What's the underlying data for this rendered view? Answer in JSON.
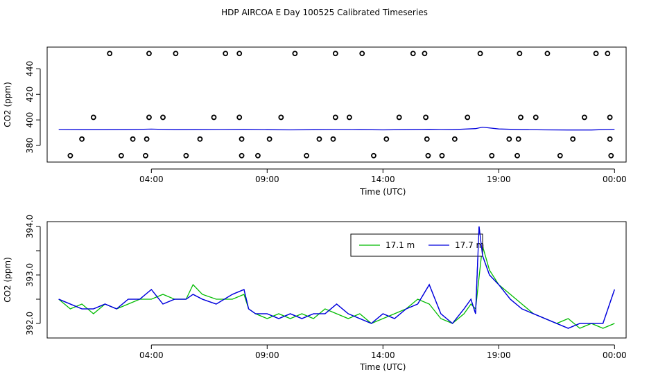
{
  "page_title": "HDP AIRCOA E  Day 100525  Calibrated Timeseries",
  "colors": {
    "series_17_1": "#00bb00",
    "series_17_7": "#0000dd",
    "axes": "#000000"
  },
  "chart_data": [
    {
      "type": "scatter",
      "title": "HDP AIRCOA E  Day 100525  Calibrated Timeseries",
      "xlabel": "Time (UTC)",
      "ylabel": "CO2 (ppm)",
      "x_unit": "hours since 00:00",
      "xlim": [
        -0.5,
        24.5
      ],
      "ylim": [
        367,
        457
      ],
      "x_ticks": [
        4,
        9,
        14,
        19,
        24
      ],
      "x_tick_labels": [
        "04:00",
        "09:00",
        "14:00",
        "19:00",
        "00:00"
      ],
      "y_ticks": [
        380,
        400,
        420,
        440
      ],
      "y_tick_labels": [
        "380",
        "400",
        "420",
        "440"
      ],
      "grid": false,
      "series": [
        {
          "name": "",
          "kind": "open-circle",
          "points": [
            [
              2.2,
              452
            ],
            [
              3.9,
              452
            ],
            [
              5.05,
              452
            ],
            [
              7.2,
              452
            ],
            [
              7.8,
              452
            ],
            [
              10.2,
              452
            ],
            [
              11.95,
              452
            ],
            [
              13.1,
              452
            ],
            [
              15.3,
              452
            ],
            [
              15.8,
              452
            ],
            [
              18.2,
              452
            ],
            [
              19.9,
              452
            ],
            [
              21.1,
              452
            ],
            [
              23.2,
              452
            ],
            [
              23.7,
              452
            ],
            [
              1.5,
              402
            ],
            [
              3.9,
              402
            ],
            [
              4.5,
              402
            ],
            [
              6.7,
              402
            ],
            [
              7.8,
              402
            ],
            [
              9.6,
              402
            ],
            [
              11.95,
              402
            ],
            [
              12.55,
              402
            ],
            [
              14.7,
              402
            ],
            [
              15.85,
              402
            ],
            [
              17.65,
              402
            ],
            [
              19.95,
              402
            ],
            [
              20.6,
              402
            ],
            [
              22.7,
              402
            ],
            [
              23.8,
              402
            ],
            [
              1.0,
              385
            ],
            [
              3.2,
              385
            ],
            [
              3.8,
              385
            ],
            [
              6.1,
              385
            ],
            [
              7.9,
              385
            ],
            [
              9.1,
              385
            ],
            [
              11.25,
              385
            ],
            [
              11.85,
              385
            ],
            [
              14.15,
              385
            ],
            [
              15.9,
              385
            ],
            [
              17.1,
              385
            ],
            [
              19.45,
              385
            ],
            [
              19.85,
              385
            ],
            [
              22.2,
              385
            ],
            [
              23.8,
              385
            ],
            [
              0.5,
              372
            ],
            [
              2.7,
              372
            ],
            [
              3.75,
              372
            ],
            [
              5.5,
              372
            ],
            [
              7.9,
              372
            ],
            [
              8.6,
              372
            ],
            [
              10.7,
              372
            ],
            [
              13.6,
              372
            ],
            [
              15.95,
              372
            ],
            [
              16.55,
              372
            ],
            [
              18.7,
              372
            ],
            [
              19.8,
              372
            ],
            [
              21.65,
              372
            ],
            [
              23.85,
              372
            ]
          ]
        },
        {
          "name": "",
          "kind": "line",
          "x": [
            0,
            1,
            2,
            3,
            4,
            5,
            6,
            7,
            8,
            9,
            10,
            11,
            12,
            13,
            14,
            15,
            16,
            17,
            18,
            18.3,
            19,
            20,
            21,
            22,
            23,
            24
          ],
          "y": [
            392.5,
            392.3,
            392.3,
            392.4,
            392.8,
            392.3,
            392.4,
            392.5,
            392.6,
            392.3,
            392.2,
            392.3,
            392.5,
            392.4,
            392.2,
            392.4,
            392.6,
            392.4,
            393.2,
            394.3,
            392.9,
            392.4,
            392.2,
            392.1,
            392.1,
            392.7
          ]
        }
      ]
    },
    {
      "type": "line",
      "title": "",
      "xlabel": "Time (UTC)",
      "ylabel": "CO2 (ppm)",
      "x_unit": "hours since 00:00",
      "xlim": [
        -0.5,
        24.5
      ],
      "ylim": [
        391.7,
        394.1
      ],
      "x_ticks": [
        4,
        9,
        14,
        19,
        24
      ],
      "x_tick_labels": [
        "04:00",
        "09:00",
        "14:00",
        "19:00",
        "00:00"
      ],
      "y_ticks": [
        392.0,
        392.5,
        393.0,
        393.5,
        394.0
      ],
      "y_tick_labels": [
        "392.0",
        "",
        "393.0",
        "",
        "394.0"
      ],
      "grid": false,
      "legend": {
        "position": "top-center",
        "entries": [
          "17.1 m",
          "17.7 m"
        ]
      },
      "series": [
        {
          "name": "17.1 m",
          "x": [
            0,
            0.5,
            1,
            1.5,
            2,
            2.5,
            3,
            3.5,
            4,
            4.5,
            5,
            5.5,
            5.8,
            6.2,
            6.8,
            7.5,
            8.0,
            8.2,
            8.5,
            9,
            9.5,
            10,
            10.5,
            11,
            11.5,
            12,
            12.5,
            13,
            13.5,
            14,
            14.5,
            15,
            15.5,
            16,
            16.5,
            17,
            17.5,
            17.8,
            18.0,
            18.3,
            18.6,
            19,
            19.5,
            20,
            20.5,
            21,
            21.5,
            22,
            22.5,
            23,
            23.5,
            24
          ],
          "y": [
            392.5,
            392.3,
            392.4,
            392.2,
            392.4,
            392.3,
            392.4,
            392.5,
            392.5,
            392.6,
            392.5,
            392.5,
            392.8,
            392.6,
            392.5,
            392.5,
            392.6,
            392.3,
            392.2,
            392.1,
            392.2,
            392.1,
            392.2,
            392.1,
            392.3,
            392.2,
            392.1,
            392.2,
            392.0,
            392.1,
            392.2,
            392.3,
            392.5,
            392.4,
            392.1,
            392.0,
            392.2,
            392.4,
            392.3,
            393.6,
            393.1,
            392.8,
            392.6,
            392.4,
            392.2,
            392.1,
            392.0,
            392.1,
            391.9,
            392.0,
            391.9,
            392.0
          ]
        },
        {
          "name": "17.7 m",
          "x": [
            0,
            0.5,
            1,
            1.5,
            2,
            2.5,
            3,
            3.5,
            4,
            4.5,
            5,
            5.5,
            5.8,
            6.2,
            6.8,
            7.5,
            8.0,
            8.2,
            8.5,
            9,
            9.5,
            10,
            10.5,
            11,
            11.5,
            12,
            12.5,
            13,
            13.5,
            14,
            14.5,
            15,
            15.5,
            16,
            16.5,
            17,
            17.5,
            17.8,
            18.0,
            18.15,
            18.3,
            18.6,
            19,
            19.5,
            20,
            20.5,
            21,
            21.5,
            22,
            22.5,
            23,
            23.5,
            24
          ],
          "y": [
            392.5,
            392.4,
            392.3,
            392.3,
            392.4,
            392.3,
            392.5,
            392.5,
            392.7,
            392.4,
            392.5,
            392.5,
            392.6,
            392.5,
            392.4,
            392.6,
            392.7,
            392.3,
            392.2,
            392.2,
            392.1,
            392.2,
            392.1,
            392.2,
            392.2,
            392.4,
            392.2,
            392.1,
            392.0,
            392.2,
            392.1,
            392.3,
            392.4,
            392.8,
            392.2,
            392.0,
            392.3,
            392.5,
            392.2,
            394.0,
            393.4,
            393.0,
            392.8,
            392.5,
            392.3,
            392.2,
            392.1,
            392.0,
            391.9,
            392.0,
            392.0,
            392.0,
            392.7
          ]
        }
      ]
    }
  ]
}
